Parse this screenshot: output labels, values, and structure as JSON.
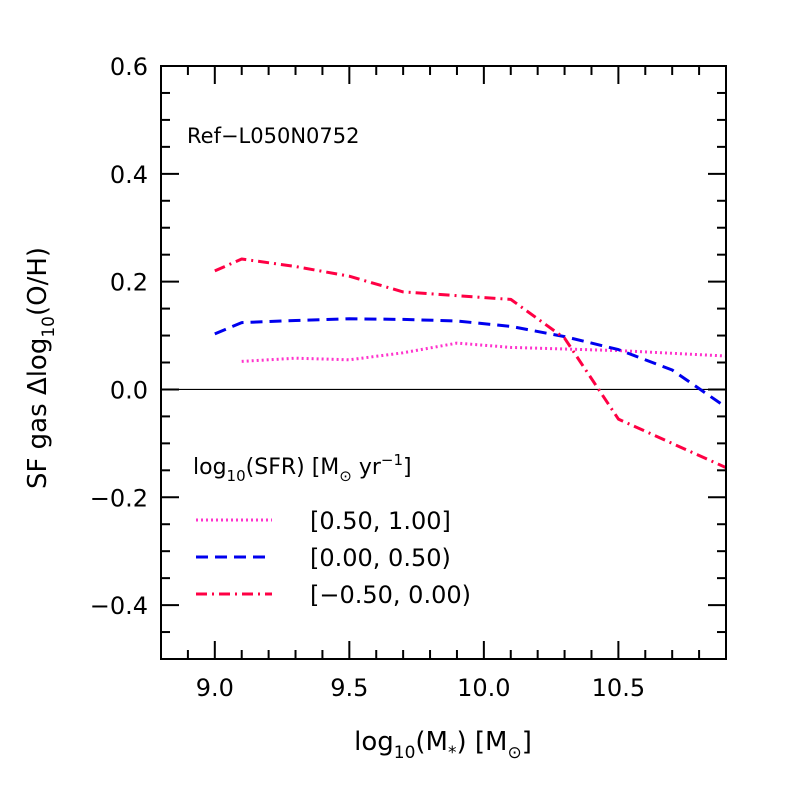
{
  "chart_data": {
    "type": "line",
    "annotation": "Ref−L050N0752",
    "xlabel": {
      "main": "log",
      "sub": "10",
      "rest": "(M",
      "sub2": "*",
      "rest2": ")  [M",
      "sym": "⊙",
      "end": "]"
    },
    "ylabel": {
      "main": "SF  gas  Δlog",
      "sub": "10",
      "rest": "(O/H)"
    },
    "xlim": [
      8.8,
      10.9
    ],
    "ylim": [
      -0.5,
      0.6
    ],
    "xticks_major": [
      9.0,
      9.5,
      10.0,
      10.5
    ],
    "xtick_labels": [
      "9.0",
      "9.5",
      "10.0",
      "10.5"
    ],
    "yticks_major": [
      -0.4,
      -0.2,
      0.0,
      0.2,
      0.4,
      0.6
    ],
    "ytick_labels": [
      "−0.4",
      "−0.2",
      "0.0",
      "0.2",
      "0.4",
      "0.6"
    ],
    "zero_line": true,
    "legend": {
      "title": {
        "main": "log",
        "sub": "10",
        "rest": "(SFR)  [M",
        "sym": "⊙",
        "mid": " yr",
        "sup": "−1",
        "end": "]"
      },
      "placement": "lower-left"
    },
    "series": [
      {
        "name": "[0.50, 1.00]",
        "color": "#ff33cc",
        "style": "dotted",
        "x": [
          9.1,
          9.3,
          9.5,
          9.7,
          9.9,
          10.1,
          10.3,
          10.5,
          10.7,
          10.9
        ],
        "y": [
          0.052,
          0.058,
          0.055,
          0.068,
          0.086,
          0.078,
          0.075,
          0.072,
          0.067,
          0.062
        ]
      },
      {
        "name": "[0.00, 0.50)",
        "color": "#0000ee",
        "style": "dashed",
        "x": [
          9.0,
          9.1,
          9.3,
          9.5,
          9.7,
          9.9,
          10.1,
          10.3,
          10.5,
          10.7,
          10.9
        ],
        "y": [
          0.103,
          0.124,
          0.128,
          0.131,
          0.13,
          0.127,
          0.117,
          0.098,
          0.074,
          0.036,
          -0.033
        ]
      },
      {
        "name": "[−0.50, 0.00)",
        "color": "#ff0044",
        "style": "dashdot",
        "x": [
          9.0,
          9.1,
          9.3,
          9.5,
          9.7,
          9.9,
          10.1,
          10.3,
          10.5,
          10.7,
          10.9
        ],
        "y": [
          0.22,
          0.242,
          0.228,
          0.21,
          0.181,
          0.174,
          0.167,
          0.095,
          -0.055,
          -0.1,
          -0.145
        ]
      }
    ]
  }
}
